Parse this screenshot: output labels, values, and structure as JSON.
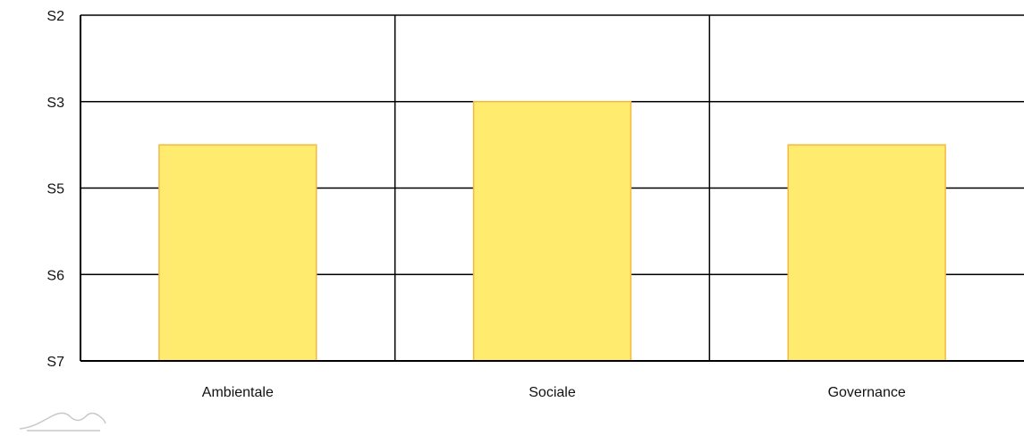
{
  "chart_data": {
    "type": "bar",
    "categories": [
      "Ambientale",
      "Sociale",
      "Governance"
    ],
    "y_levels": [
      "S2",
      "S3",
      "S5",
      "S6",
      "S7"
    ],
    "values": [
      "S4",
      "S3",
      "S4"
    ],
    "grid": true,
    "colors": {
      "bar_fill": "#FFEB6E",
      "bar_stroke": "#F5B942"
    }
  },
  "logo": {
    "icon": "mountain-logo-icon"
  }
}
